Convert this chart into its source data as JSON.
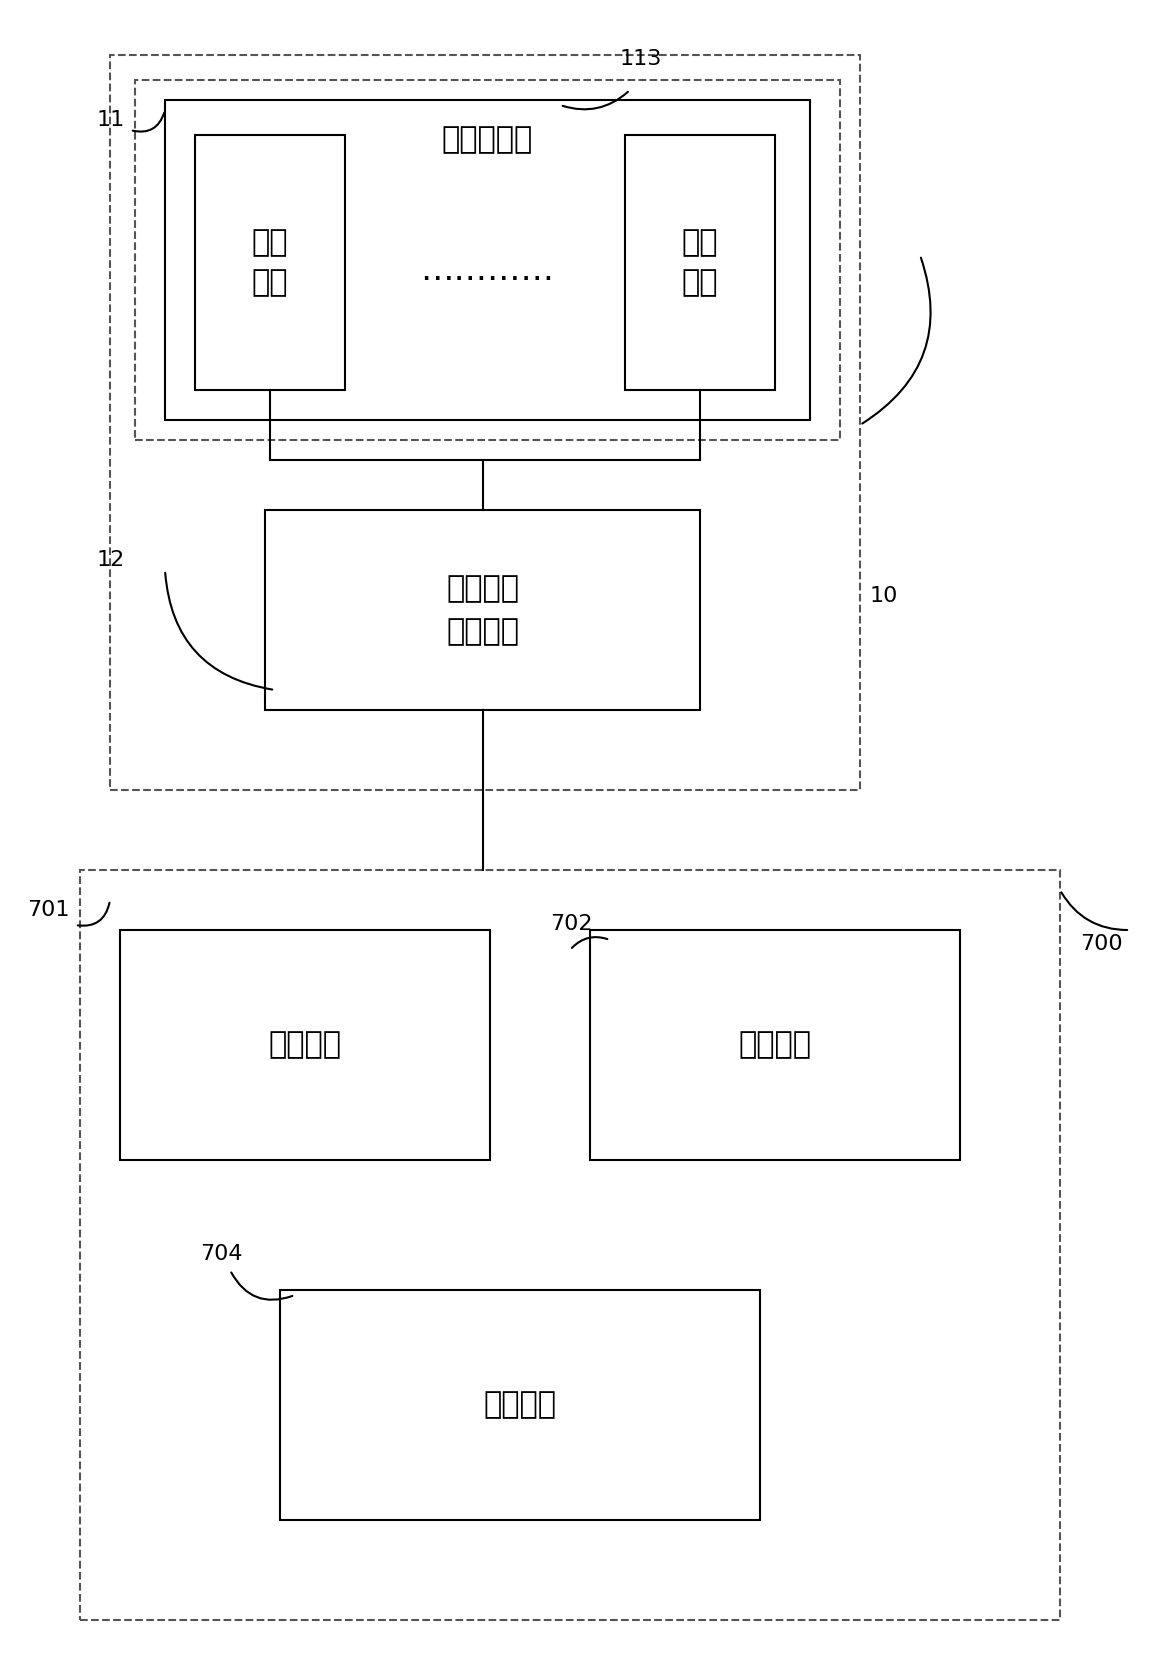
{
  "bg_color": "#ffffff",
  "line_color": "#000000",
  "dashed_color": "#555555",
  "label_11": "11",
  "label_12": "12",
  "label_10": "10",
  "label_113": "113",
  "label_700": "700",
  "label_701": "701",
  "label_702": "702",
  "label_704": "704",
  "text_battery_group": "测试电池组",
  "text_cell1": "单体\n电池",
  "text_dots": "…………",
  "text_cell2": "单体\n电池",
  "text_monitor_module": "固定能源\n监控模块",
  "text_monitor_unit": "监测单元",
  "text_diagnose_unit": "诊断单元",
  "text_balance_unit": "均衡单元",
  "font_size_large": 22,
  "font_size_medium": 18,
  "font_size_label": 16,
  "font_size_dots": 24
}
